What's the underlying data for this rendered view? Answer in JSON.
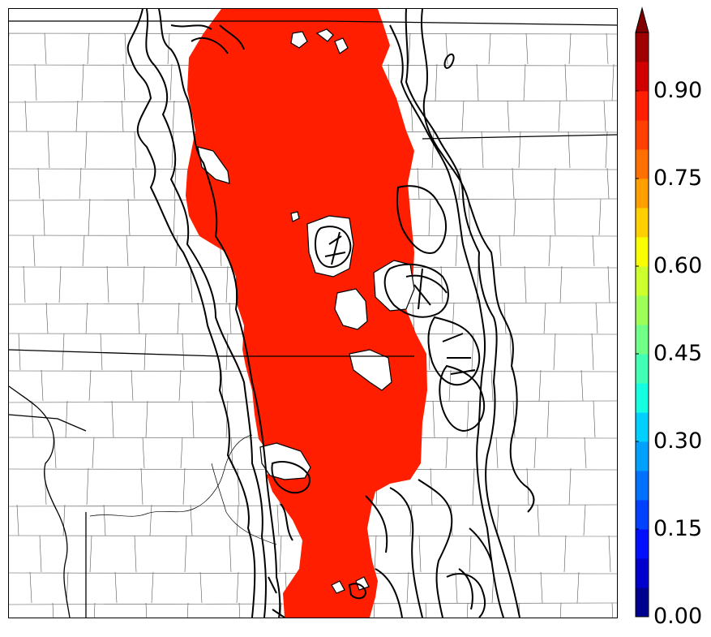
{
  "map": {
    "fill_color": "#ff1e00",
    "contour_color": "#000000",
    "boundary_color": "#000000",
    "county_color": "#555555"
  },
  "colorbar": {
    "extend": "max",
    "levels": [
      0.0,
      0.05,
      0.1,
      0.15,
      0.2,
      0.25,
      0.3,
      0.35,
      0.4,
      0.45,
      0.5,
      0.55,
      0.6,
      0.65,
      0.7,
      0.75,
      0.8,
      0.85,
      0.9,
      0.95,
      1.0
    ],
    "colors": [
      "#00008f",
      "#0000cc",
      "#0010ff",
      "#0040ff",
      "#0070ff",
      "#00a0ff",
      "#00d0ff",
      "#14ffe2",
      "#42ffb5",
      "#70ff87",
      "#9eff59",
      "#ccff2b",
      "#f9ff00",
      "#ffd000",
      "#ffa000",
      "#ff7000",
      "#ff4000",
      "#ff1e00",
      "#d00000",
      "#a00000"
    ],
    "extend_color": "#800000",
    "ticks": [
      "0.00",
      "0.15",
      "0.30",
      "0.45",
      "0.60",
      "0.75",
      "0.90"
    ]
  }
}
